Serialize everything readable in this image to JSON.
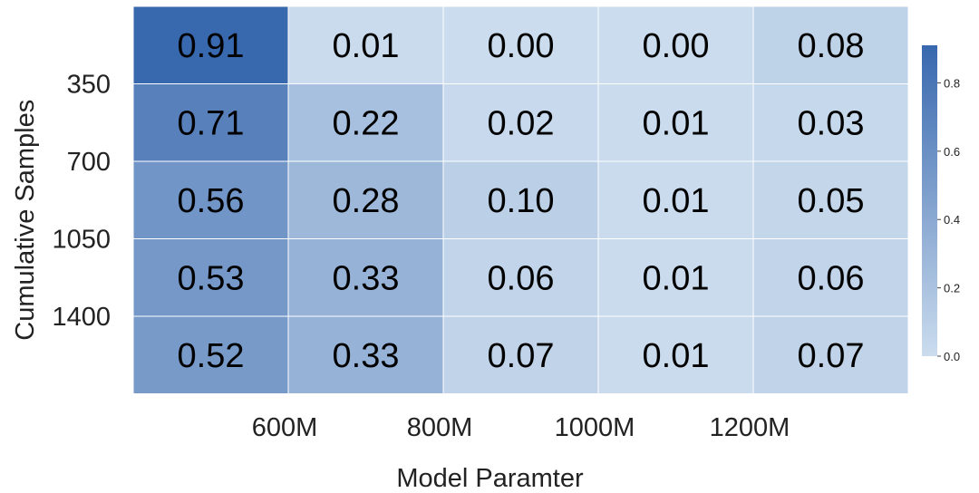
{
  "chart_data": {
    "type": "heatmap",
    "xlabel": "Model Paramter",
    "ylabel": "Cumulative Samples",
    "x_tick_labels": [
      "600M",
      "800M",
      "1000M",
      "1200M"
    ],
    "y_tick_labels": [
      "350",
      "700",
      "1050",
      "1400"
    ],
    "values": [
      [
        0.91,
        0.01,
        0.0,
        0.0,
        0.08
      ],
      [
        0.71,
        0.22,
        0.02,
        0.01,
        0.03
      ],
      [
        0.56,
        0.28,
        0.1,
        0.01,
        0.05
      ],
      [
        0.53,
        0.33,
        0.06,
        0.01,
        0.06
      ],
      [
        0.52,
        0.33,
        0.07,
        0.01,
        0.07
      ]
    ],
    "value_labels": [
      [
        "0.91",
        "0.01",
        "0.00",
        "0.00",
        "0.08"
      ],
      [
        "0.71",
        "0.22",
        "0.02",
        "0.01",
        "0.03"
      ],
      [
        "0.56",
        "0.28",
        "0.10",
        "0.01",
        "0.05"
      ],
      [
        "0.53",
        "0.33",
        "0.06",
        "0.01",
        "0.06"
      ],
      [
        "0.52",
        "0.33",
        "0.07",
        "0.01",
        "0.07"
      ]
    ],
    "colorbar": {
      "range": [
        0.0,
        0.91
      ],
      "tick_values": [
        0.0,
        0.2,
        0.4,
        0.6,
        0.8
      ],
      "tick_labels": [
        "0.0",
        "0.2",
        "0.4",
        "0.6",
        "0.8"
      ]
    },
    "colors": {
      "low": "#cbdcee",
      "high": "#3868ae"
    },
    "grid": true,
    "legend": "colorbar-right"
  }
}
